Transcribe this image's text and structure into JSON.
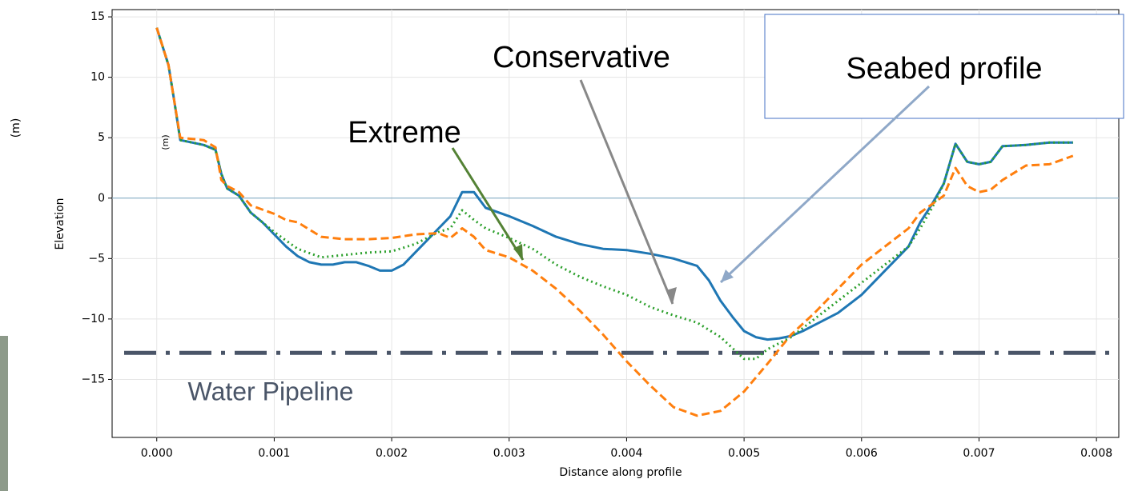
{
  "chart_data": {
    "type": "line",
    "x_label": "Distance along profile",
    "y_label": "Elevation",
    "unit_outer": "(m)",
    "unit_inner": "(m)",
    "annotations": [
      "Seabed profile",
      "Conservative",
      "Extreme",
      "Water Pipeline"
    ],
    "xlim": [
      -0.00038,
      0.00819
    ],
    "ylim": [
      -19.8,
      15.6
    ],
    "xticks": [
      {
        "value": 0,
        "label": "0.000"
      },
      {
        "value": 0.001,
        "label": "0.001"
      },
      {
        "value": 0.002,
        "label": "0.002"
      },
      {
        "value": 0.003,
        "label": "0.003"
      },
      {
        "value": 0.004,
        "label": "0.004"
      },
      {
        "value": 0.005,
        "label": "0.005"
      },
      {
        "value": 0.006,
        "label": "0.006"
      },
      {
        "value": 0.007,
        "label": "0.007"
      },
      {
        "value": 0.008,
        "label": "0.008"
      }
    ],
    "yticks": [
      {
        "value": -15,
        "label": "−15"
      },
      {
        "value": -10,
        "label": "−10"
      },
      {
        "value": -5,
        "label": "−5"
      },
      0,
      5,
      10,
      15
    ],
    "grid": true,
    "reference_lines": [
      {
        "value": 0,
        "color": "#7aa6c2",
        "linestyle": "solid"
      },
      {
        "value": -12.8,
        "color": "#4a5568",
        "linestyle": "dashdot"
      }
    ],
    "series": [
      {
        "color": "#1f77b4",
        "linestyle": "solid",
        "x": [
          0,
          0.0001,
          0.00015,
          0.0002,
          0.0003,
          0.0004,
          0.0005,
          0.00055,
          0.0006,
          0.0007,
          0.0008,
          0.0009,
          0.001,
          0.0011,
          0.0012,
          0.0013,
          0.0014,
          0.0015,
          0.0016,
          0.0017,
          0.0018,
          0.0019,
          0.002,
          0.0021,
          0.0022,
          0.0023,
          0.0024,
          0.0025,
          0.0026,
          0.0027,
          0.0028,
          0.003,
          0.0032,
          0.0034,
          0.0036,
          0.0038,
          0.004,
          0.0042,
          0.0044,
          0.0046,
          0.0047,
          0.0048,
          0.0049,
          0.005,
          0.0051,
          0.0052,
          0.0053,
          0.0054,
          0.0055,
          0.0056,
          0.0058,
          0.006,
          0.0062,
          0.0064,
          0.0065,
          0.0066,
          0.0067,
          0.0068,
          0.0069,
          0.007,
          0.0071,
          0.0072,
          0.0074,
          0.0076,
          0.0078
        ],
        "values": [
          14.1,
          11,
          8,
          4.8,
          4.6,
          4.4,
          4.0,
          2,
          0.8,
          0.2,
          -1.2,
          -2.0,
          -3.0,
          -4.0,
          -4.8,
          -5.3,
          -5.5,
          -5.5,
          -5.3,
          -5.3,
          -5.6,
          -6.0,
          -6.0,
          -5.5,
          -4.5,
          -3.5,
          -2.5,
          -1.5,
          0.5,
          0.5,
          -0.8,
          -1.5,
          -2.3,
          -3.2,
          -3.8,
          -4.2,
          -4.3,
          -4.6,
          -5.0,
          -5.6,
          -6.8,
          -8.5,
          -9.8,
          -11.0,
          -11.5,
          -11.7,
          -11.6,
          -11.4,
          -11.0,
          -10.5,
          -9.5,
          -8.0,
          -6.0,
          -4.0,
          -2.0,
          -0.5,
          1.2,
          4.5,
          3.0,
          2.8,
          3.0,
          4.3,
          4.4,
          4.6,
          4.6
        ]
      },
      {
        "color": "#2ca02c",
        "linestyle": "dotted",
        "x": [
          0,
          0.0001,
          0.00015,
          0.0002,
          0.0003,
          0.0004,
          0.0005,
          0.00055,
          0.0006,
          0.0007,
          0.0008,
          0.001,
          0.0012,
          0.0014,
          0.0016,
          0.0018,
          0.002,
          0.0022,
          0.0024,
          0.0025,
          0.0026,
          0.0027,
          0.0028,
          0.003,
          0.0032,
          0.0034,
          0.0036,
          0.0038,
          0.004,
          0.0042,
          0.0044,
          0.0046,
          0.0048,
          0.005,
          0.0051,
          0.0052,
          0.0054,
          0.0056,
          0.0058,
          0.006,
          0.0062,
          0.0064,
          0.0065,
          0.0066,
          0.0067,
          0.0068,
          0.0069,
          0.007,
          0.0071,
          0.0072,
          0.0074,
          0.0076,
          0.0078
        ],
        "values": [
          14.1,
          11,
          8,
          4.8,
          4.6,
          4.4,
          4.0,
          2,
          0.8,
          0.2,
          -1.2,
          -2.8,
          -4.2,
          -4.9,
          -4.7,
          -4.5,
          -4.4,
          -3.8,
          -2.8,
          -2.5,
          -1.0,
          -1.8,
          -2.5,
          -3.3,
          -4.2,
          -5.5,
          -6.5,
          -7.3,
          -8.0,
          -9.0,
          -9.7,
          -10.3,
          -11.5,
          -13.3,
          -13.3,
          -12.5,
          -11.5,
          -10.0,
          -8.5,
          -7.0,
          -5.5,
          -4.0,
          -2.5,
          -0.8,
          1.2,
          4.5,
          3.0,
          2.8,
          3.0,
          4.3,
          4.4,
          4.6,
          4.6
        ]
      },
      {
        "color": "#ff7f0e",
        "linestyle": "dashed",
        "x": [
          0,
          0.0001,
          0.00015,
          0.0002,
          0.0003,
          0.0004,
          0.0005,
          0.00055,
          0.0006,
          0.0007,
          0.0008,
          0.001,
          0.0011,
          0.0012,
          0.0014,
          0.0016,
          0.0018,
          0.002,
          0.0022,
          0.0024,
          0.0025,
          0.0026,
          0.0027,
          0.0028,
          0.003,
          0.0032,
          0.0034,
          0.0036,
          0.0038,
          0.004,
          0.0042,
          0.0044,
          0.0046,
          0.0048,
          0.005,
          0.0052,
          0.0054,
          0.0056,
          0.0058,
          0.006,
          0.0062,
          0.0064,
          0.0065,
          0.0066,
          0.0067,
          0.0068,
          0.0069,
          0.007,
          0.0071,
          0.0072,
          0.0074,
          0.0076,
          0.0078
        ],
        "values": [
          14.1,
          11,
          8,
          5.0,
          4.9,
          4.8,
          4.2,
          1.5,
          1,
          0.5,
          -0.6,
          -1.3,
          -1.8,
          -2.0,
          -3.2,
          -3.4,
          -3.4,
          -3.3,
          -3.0,
          -2.9,
          -3.3,
          -2.5,
          -3.2,
          -4.3,
          -4.9,
          -6.0,
          -7.5,
          -9.3,
          -11.3,
          -13.5,
          -15.5,
          -17.3,
          -18.0,
          -17.6,
          -16.0,
          -13.7,
          -11.3,
          -9.5,
          -7.5,
          -5.5,
          -4.0,
          -2.5,
          -1.2,
          -0.5,
          0.2,
          2.5,
          1.0,
          0.5,
          0.7,
          1.5,
          2.7,
          2.8,
          3.5
        ]
      }
    ]
  }
}
